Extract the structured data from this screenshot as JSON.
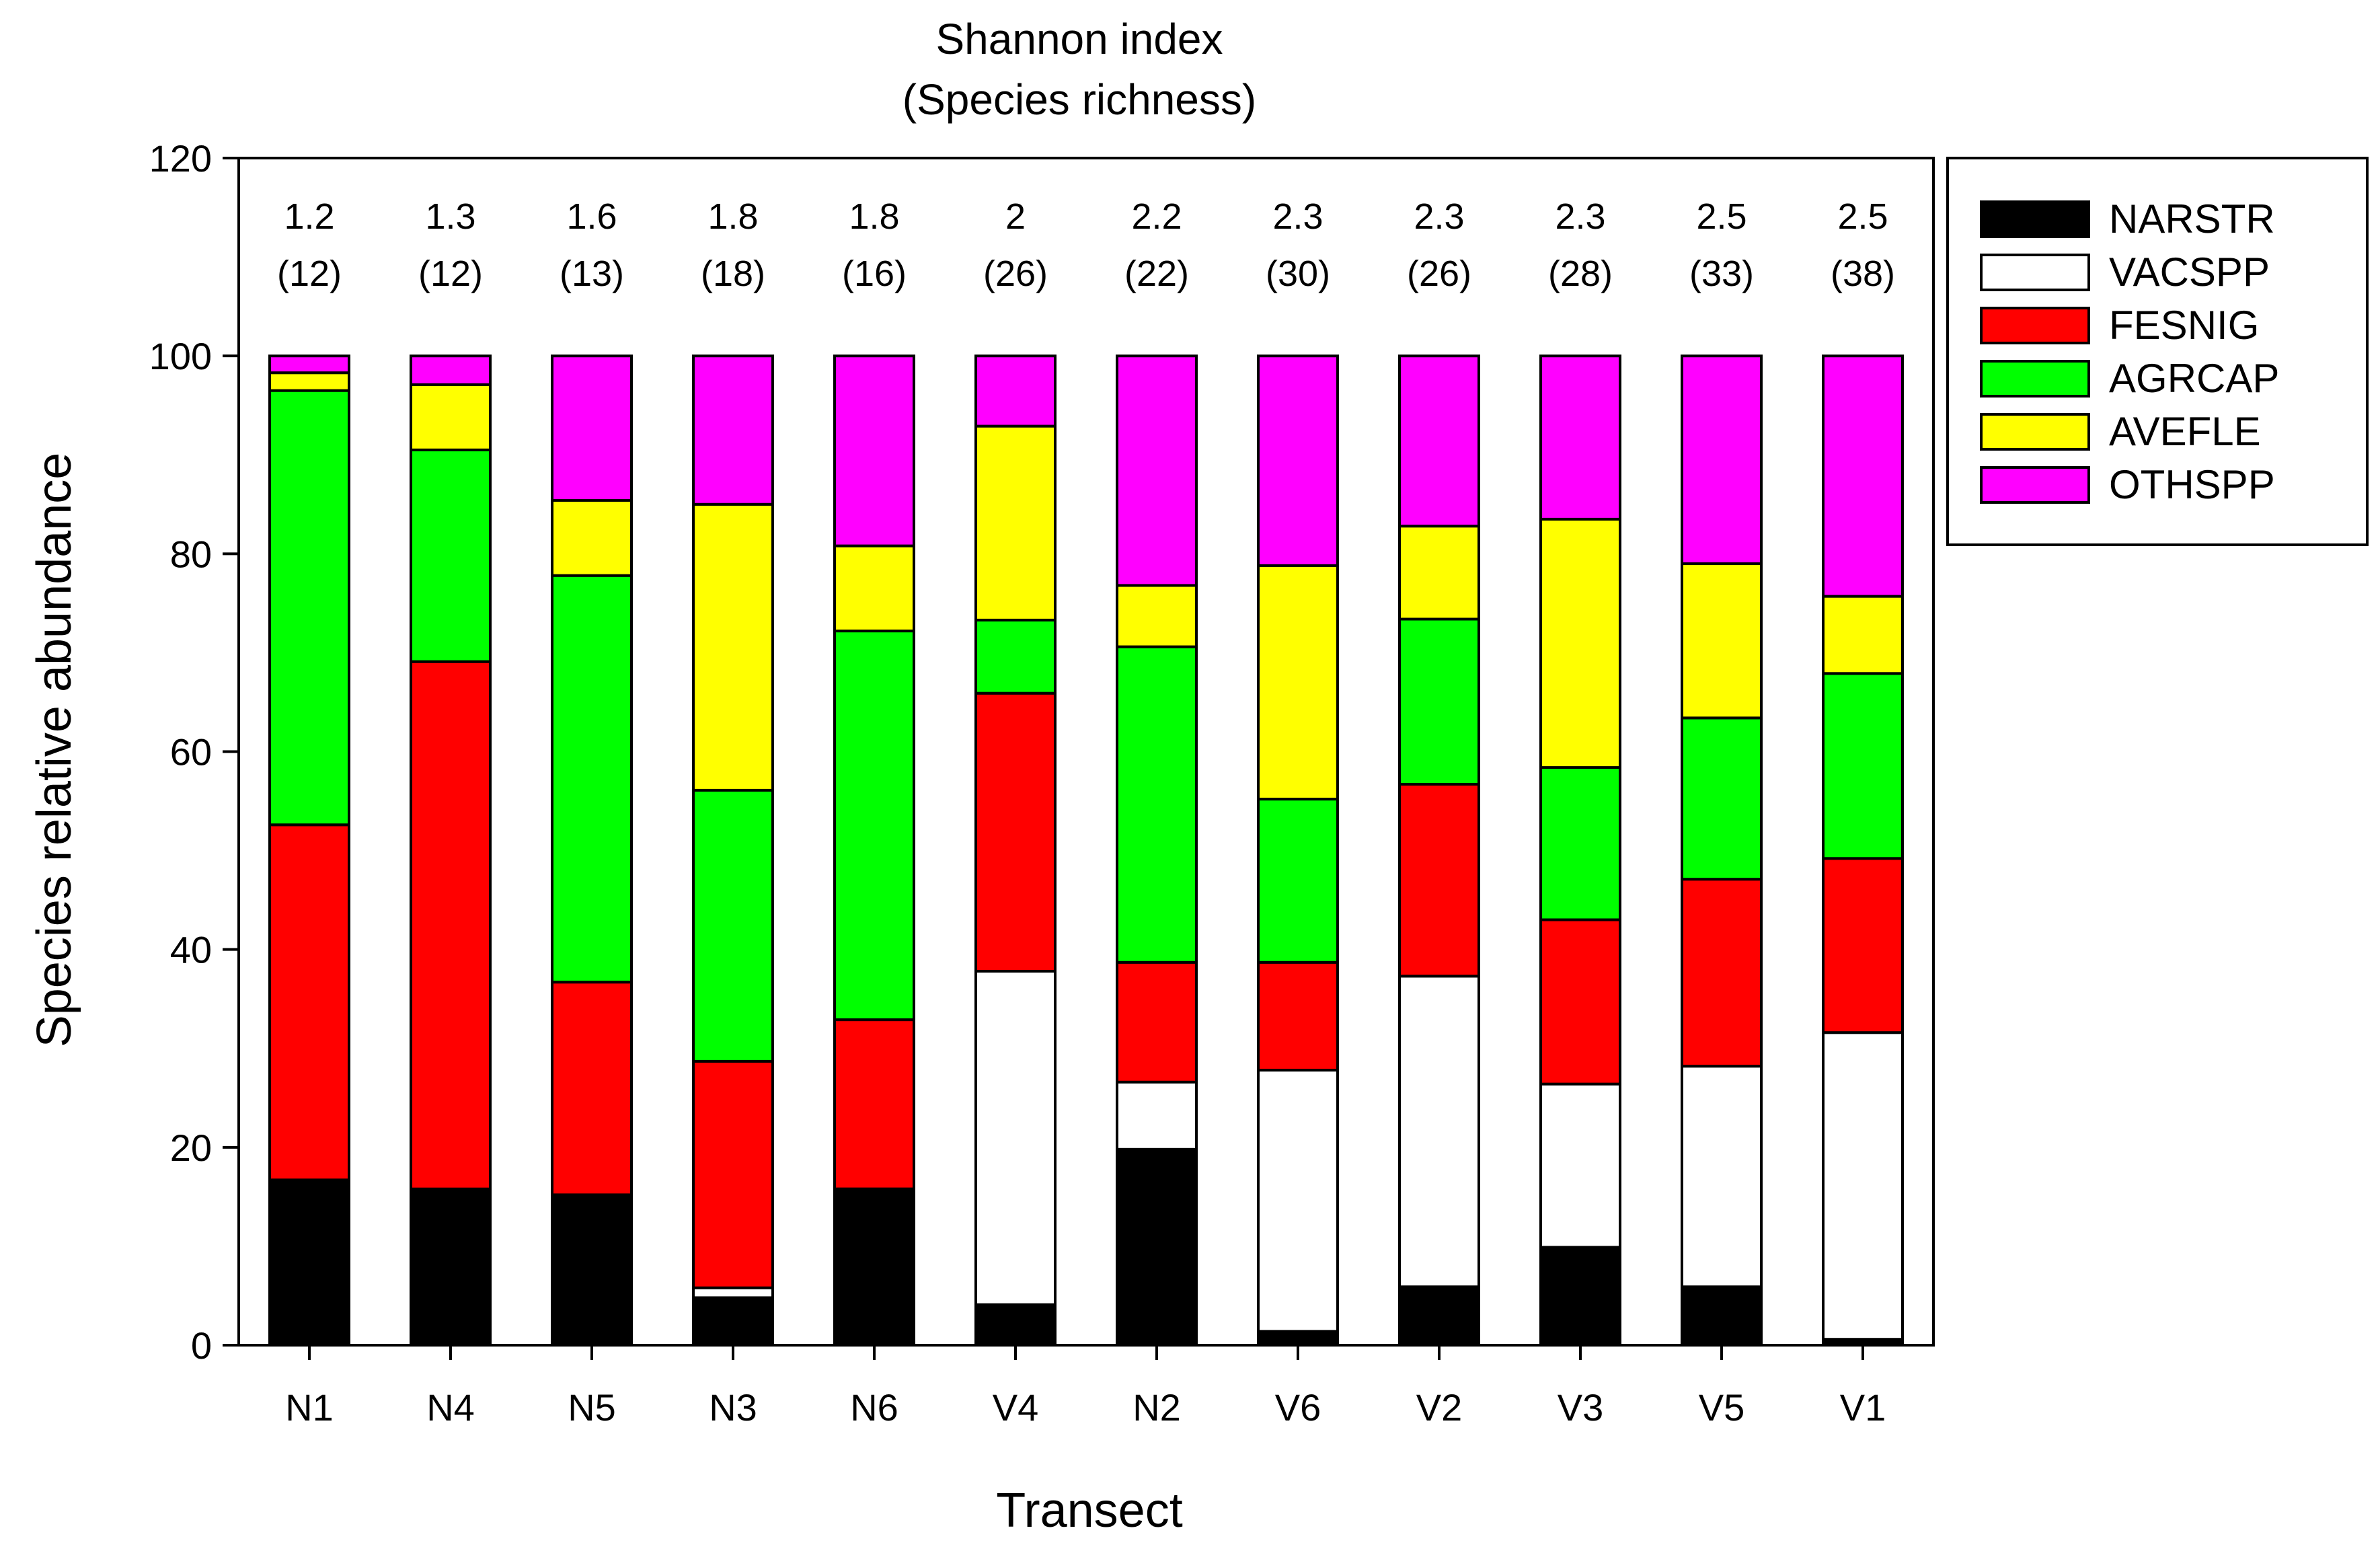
{
  "chart_data": {
    "type": "bar",
    "stacked": true,
    "title": "Shannon index",
    "subtitle": "(Species richness)",
    "xlabel": "Transect",
    "ylabel": "Species relative abundance",
    "ylim": [
      0,
      120
    ],
    "yticks": [
      0,
      20,
      40,
      60,
      80,
      100,
      120
    ],
    "grid": false,
    "legend_position": "right",
    "categories": [
      "N1",
      "N4",
      "N5",
      "N3",
      "N6",
      "V4",
      "N2",
      "V6",
      "V2",
      "V3",
      "V5",
      "V1"
    ],
    "annotations": {
      "shannon": [
        "1.2",
        "1.3",
        "1.6",
        "1.8",
        "1.8",
        "2",
        "2.2",
        "2.3",
        "2.3",
        "2.3",
        "2.5",
        "2.5"
      ],
      "richness": [
        "(12)",
        "(12)",
        "(13)",
        "(18)",
        "(16)",
        "(26)",
        "(22)",
        "(30)",
        "(26)",
        "(28)",
        "(33)",
        "(38)"
      ]
    },
    "series": [
      {
        "name": "NARSTR",
        "color": "#000000",
        "values": [
          16.7,
          15.8,
          15.2,
          4.8,
          15.8,
          4.1,
          19.8,
          1.4,
          5.9,
          9.9,
          5.9,
          0.6
        ]
      },
      {
        "name": "VACSPP",
        "color": "#ffffff",
        "values": [
          0,
          0,
          0,
          1.0,
          0,
          33.7,
          6.8,
          26.4,
          31.4,
          16.5,
          22.3,
          31.0
        ]
      },
      {
        "name": "FESNIG",
        "color": "#ff0000",
        "values": [
          35.9,
          53.3,
          21.5,
          22.9,
          17.1,
          28.1,
          12.1,
          10.9,
          19.4,
          16.6,
          18.9,
          17.6
        ]
      },
      {
        "name": "AGRCAP",
        "color": "#00ff00",
        "values": [
          43.9,
          21.4,
          41.1,
          27.4,
          39.3,
          7.4,
          31.9,
          16.5,
          16.7,
          15.4,
          16.3,
          18.7
        ]
      },
      {
        "name": "AVEFLE",
        "color": "#ffff00",
        "values": [
          1.8,
          6.6,
          7.6,
          28.9,
          8.6,
          19.6,
          6.2,
          23.6,
          9.4,
          25.1,
          15.6,
          7.8
        ]
      },
      {
        "name": "OTHSPP",
        "color": "#ff00ff",
        "values": [
          1.7,
          2.9,
          14.6,
          15.0,
          19.2,
          7.1,
          23.2,
          21.2,
          17.2,
          16.5,
          21.0,
          24.3
        ]
      }
    ]
  }
}
